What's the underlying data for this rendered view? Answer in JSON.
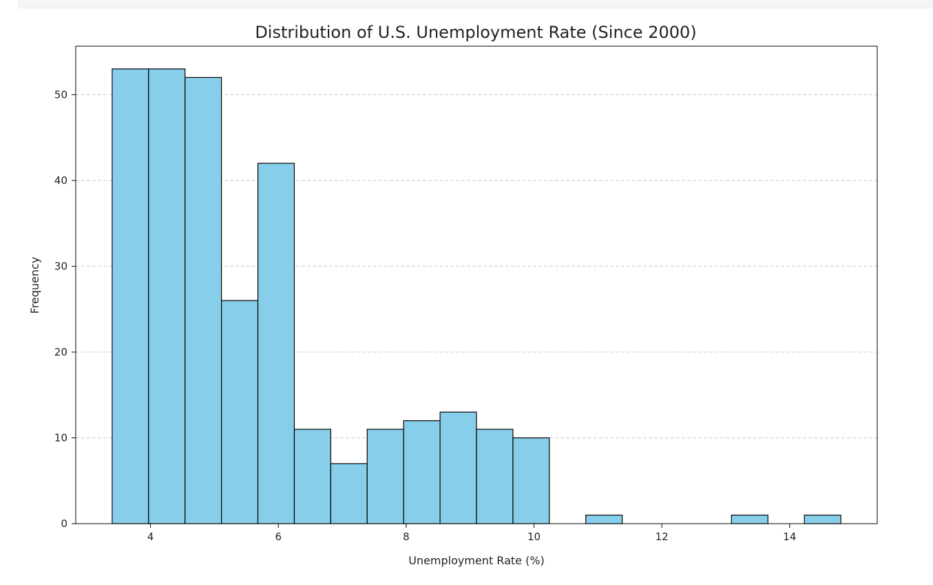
{
  "chart_data": {
    "type": "bar",
    "title": "Distribution of U.S. Unemployment Rate (Since 2000)",
    "xlabel": "Unemployment Rate (%)",
    "ylabel": "Frequency",
    "bin_edges": [
      3.4,
      3.97,
      4.54,
      5.11,
      5.68,
      6.25,
      6.82,
      7.39,
      7.96,
      8.53,
      9.1,
      9.67,
      10.24,
      10.81,
      11.38,
      11.95,
      12.52,
      13.09,
      13.66,
      14.23,
      14.8
    ],
    "values": [
      53,
      53,
      52,
      26,
      42,
      11,
      7,
      11,
      12,
      13,
      11,
      10,
      0,
      1,
      0,
      0,
      0,
      1,
      0,
      1
    ],
    "xlim": [
      2.83,
      15.37
    ],
    "ylim": [
      0,
      55.65
    ],
    "xticks": [
      4,
      6,
      8,
      10,
      12,
      14
    ],
    "yticks": [
      0,
      10,
      20,
      30,
      40,
      50
    ],
    "grid": "y-dashed",
    "colors": {
      "bar_fill": "#87ceeb",
      "bar_edge": "#000000",
      "grid": "#cccccc"
    }
  }
}
